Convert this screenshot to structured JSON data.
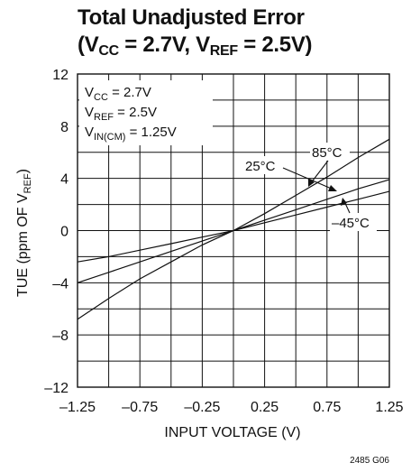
{
  "title": {
    "line1": "Total Unadjusted Error",
    "l2_open": "(V",
    "l2_sub1": "CC",
    "l2_mid": " = 2.7V, V",
    "l2_sub2": "REF",
    "l2_close": " = 2.5V)"
  },
  "footnote": "2485 G06",
  "conditions": [
    {
      "base": "V",
      "sub": "CC",
      "rest": " = 2.7V"
    },
    {
      "base": "V",
      "sub": "REF",
      "rest": " = 2.5V"
    },
    {
      "base": "V",
      "sub": "IN(CM)",
      "rest": " = 1.25V"
    }
  ],
  "chart_data": {
    "type": "line",
    "title": "Total Unadjusted Error (VCC = 2.7V, VREF = 2.5V)",
    "xlabel": "INPUT VOLTAGE (V)",
    "ylabel": "TUE (ppm OF VREF)",
    "ylabel_parts": {
      "pre": "TUE (ppm OF V",
      "sub": "REF",
      "post": ")"
    },
    "xlim": [
      -1.25,
      1.25
    ],
    "ylim": [
      -12,
      12
    ],
    "x_ticks": [
      -1.25,
      -0.75,
      -0.25,
      0.25,
      0.75,
      1.25
    ],
    "x_tick_labels": [
      "–1.25",
      "–0.75",
      "–0.25",
      "0.25",
      "0.75",
      "1.25"
    ],
    "y_ticks": [
      -12,
      -8,
      -4,
      0,
      4,
      8,
      12
    ],
    "y_tick_labels": [
      "–12",
      "–8",
      "–4",
      "0",
      "4",
      "8",
      "12"
    ],
    "grid": true,
    "series": [
      {
        "name": "85°C",
        "x": [
          -1.25,
          -1.0,
          -0.75,
          -0.5,
          -0.25,
          0.0,
          0.25,
          0.5,
          0.75,
          1.0,
          1.25
        ],
        "values": [
          -6.8,
          -5.2,
          -3.7,
          -2.4,
          -1.1,
          0.0,
          1.3,
          2.7,
          4.1,
          5.6,
          7.0
        ]
      },
      {
        "name": "25°C",
        "x": [
          -1.25,
          -1.0,
          -0.75,
          -0.5,
          -0.25,
          0.0,
          0.25,
          0.5,
          0.75,
          1.0,
          1.25
        ],
        "values": [
          -4.0,
          -3.2,
          -2.4,
          -1.6,
          -0.8,
          0.0,
          0.8,
          1.6,
          2.4,
          3.2,
          3.9
        ]
      },
      {
        "name": "–45°C",
        "x": [
          -1.25,
          -1.0,
          -0.75,
          -0.5,
          -0.25,
          0.0,
          0.25,
          0.5,
          0.75,
          1.0,
          1.25
        ],
        "values": [
          -2.4,
          -2.0,
          -1.5,
          -1.0,
          -0.5,
          0.0,
          0.6,
          1.2,
          1.8,
          2.4,
          3.0
        ]
      }
    ],
    "annotations": [
      {
        "text": "85°C"
      },
      {
        "text": "25°C"
      },
      {
        "text": "–45°C"
      }
    ]
  }
}
